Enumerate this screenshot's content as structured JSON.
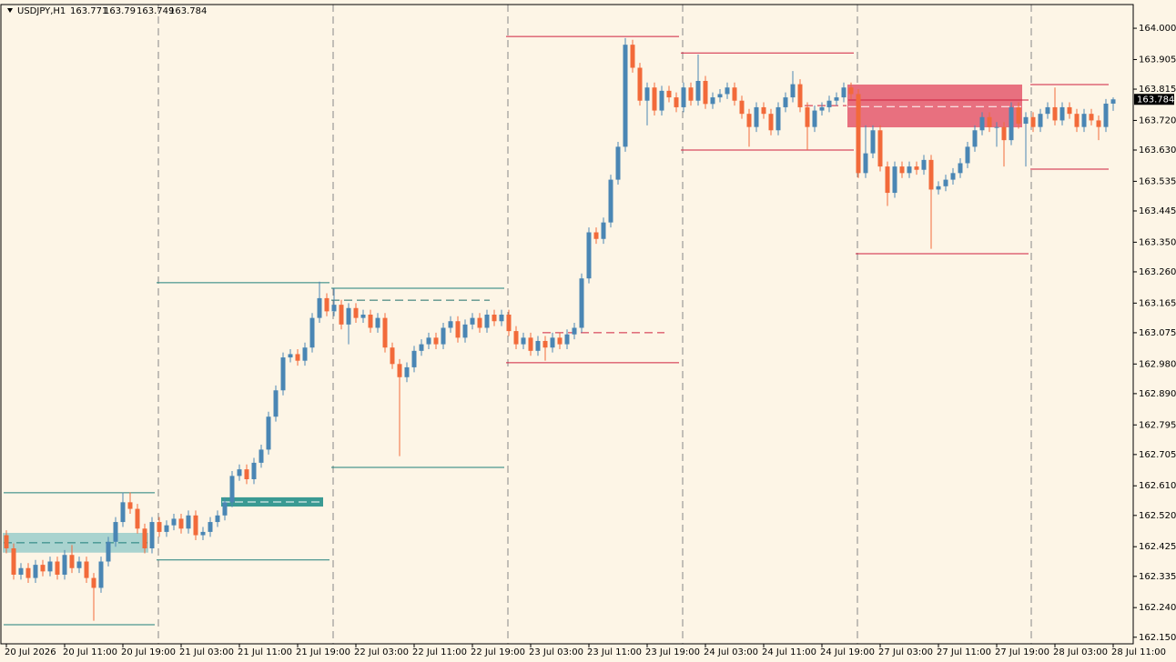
{
  "chart_data": {
    "type": "candlestick",
    "symbol": "USDJPY,H1",
    "up_color": "#4a86b4",
    "down_color": "#f26a3a",
    "ylim": [
      162.13,
      164.072
    ],
    "yticks": [
      {
        "value": 164.0,
        "label": "164.000"
      },
      163.905,
      163.815,
      {
        "value": 163.72,
        "label": "163.720"
      },
      {
        "value": 163.63,
        "label": "163.630"
      },
      163.535,
      163.445,
      {
        "value": 163.35,
        "label": "163.350"
      },
      {
        "value": 163.26,
        "label": "163.260"
      },
      163.165,
      163.075,
      {
        "value": 162.98,
        "label": "162.980"
      },
      {
        "value": 162.89,
        "label": "162.890"
      },
      162.795,
      162.705,
      {
        "value": 162.61,
        "label": "162.610"
      },
      {
        "value": 162.52,
        "label": "162.520"
      },
      162.425,
      162.335,
      {
        "value": 162.24,
        "label": "162.240"
      },
      {
        "value": 162.15,
        "label": "162.150"
      }
    ],
    "categories": [
      "20 Jul 2026",
      null,
      null,
      null,
      null,
      null,
      null,
      null,
      "20 Jul 11:00",
      null,
      null,
      null,
      null,
      null,
      null,
      null,
      "20 Jul 19:00",
      null,
      null,
      null,
      null,
      null,
      null,
      null,
      "21 Jul 03:00",
      null,
      null,
      null,
      null,
      null,
      null,
      null,
      "21 Jul 11:00",
      null,
      null,
      null,
      null,
      null,
      null,
      null,
      "21 Jul 19:00",
      null,
      null,
      null,
      null,
      null,
      null,
      null,
      "22 Jul 03:00",
      null,
      null,
      null,
      null,
      null,
      null,
      null,
      "22 Jul 11:00",
      null,
      null,
      null,
      null,
      null,
      null,
      null,
      "22 Jul 19:00",
      null,
      null,
      null,
      null,
      null,
      null,
      null,
      "23 Jul 03:00",
      null,
      null,
      null,
      null,
      null,
      null,
      null,
      "23 Jul 11:00",
      null,
      null,
      null,
      null,
      null,
      null,
      null,
      "23 Jul 19:00",
      null,
      null,
      null,
      null,
      null,
      null,
      null,
      "24 Jul 03:00",
      null,
      null,
      null,
      null,
      null,
      null,
      null,
      "24 Jul 11:00",
      null,
      null,
      null,
      null,
      null,
      null,
      null,
      "24 Jul 19:00",
      null,
      null,
      null,
      null,
      null,
      null,
      null,
      "27 Jul 03:00",
      null,
      null,
      null,
      null,
      null,
      null,
      null,
      "27 Jul 11:00",
      null,
      null,
      null,
      null,
      null,
      null,
      null,
      "27 Jul 19:00",
      null,
      null,
      null,
      null,
      null,
      null,
      null,
      "28 Jul 03:00",
      null,
      null,
      null,
      null,
      null,
      null,
      null,
      "28 Jul 11:00"
    ],
    "open": [
      162.46,
      162.42,
      162.34,
      162.36,
      162.33,
      162.37,
      162.35,
      162.38,
      162.34,
      162.4,
      162.36,
      162.38,
      162.33,
      162.3,
      162.38,
      162.44,
      162.5,
      162.56,
      162.54,
      162.48,
      162.42,
      162.5,
      162.47,
      162.49,
      162.51,
      162.48,
      162.52,
      162.46,
      162.47,
      162.5,
      162.52,
      162.56,
      162.64,
      162.66,
      162.63,
      162.68,
      162.72,
      162.82,
      162.9,
      163.0,
      163.01,
      162.99,
      163.03,
      163.12,
      163.18,
      163.14,
      163.16,
      163.1,
      163.15,
      163.12,
      163.13,
      163.09,
      163.12,
      163.03,
      162.98,
      162.94,
      162.97,
      163.02,
      163.04,
      163.06,
      163.04,
      163.09,
      163.11,
      163.06,
      163.1,
      163.12,
      163.09,
      163.13,
      163.11,
      163.13,
      163.08,
      163.04,
      163.06,
      163.02,
      163.05,
      163.03,
      163.06,
      163.04,
      163.07,
      163.09,
      163.24,
      163.38,
      163.36,
      163.41,
      163.54,
      163.64,
      163.95,
      163.88,
      163.78,
      163.82,
      163.75,
      163.81,
      163.79,
      163.76,
      163.82,
      163.78,
      163.84,
      163.77,
      163.79,
      163.8,
      163.82,
      163.78,
      163.74,
      163.7,
      163.76,
      163.74,
      163.69,
      163.76,
      163.79,
      163.83,
      163.76,
      163.7,
      163.75,
      163.76,
      163.78,
      163.79,
      163.82,
      163.8,
      163.56,
      163.62,
      163.69,
      163.58,
      163.5,
      163.58,
      163.56,
      163.58,
      163.57,
      163.6,
      163.51,
      163.52,
      163.54,
      163.56,
      163.59,
      163.64,
      163.69,
      163.73,
      163.7,
      163.7,
      163.66,
      163.76,
      163.71,
      163.73,
      163.7,
      163.74,
      163.76,
      163.72,
      163.76,
      163.74,
      163.7,
      163.74,
      163.72,
      163.7,
      163.771
    ],
    "high": [
      162.475,
      162.435,
      162.375,
      162.375,
      162.385,
      162.385,
      162.395,
      162.395,
      162.415,
      162.43,
      162.395,
      162.395,
      162.345,
      162.395,
      162.455,
      162.515,
      162.59,
      162.59,
      162.555,
      162.495,
      162.515,
      162.515,
      162.505,
      162.525,
      162.525,
      162.535,
      162.535,
      162.485,
      162.515,
      162.535,
      162.575,
      162.655,
      162.675,
      162.675,
      162.695,
      162.735,
      162.835,
      162.915,
      163.015,
      163.025,
      163.025,
      163.045,
      163.135,
      163.23,
      163.195,
      163.21,
      163.175,
      163.165,
      163.165,
      163.145,
      163.145,
      163.135,
      163.135,
      163.045,
      162.995,
      162.985,
      163.035,
      163.055,
      163.075,
      163.075,
      163.105,
      163.125,
      163.125,
      163.115,
      163.135,
      163.135,
      163.145,
      163.145,
      163.145,
      163.145,
      163.095,
      163.075,
      163.075,
      163.065,
      163.065,
      163.075,
      163.075,
      163.085,
      163.105,
      163.255,
      163.395,
      163.395,
      163.425,
      163.555,
      163.655,
      163.97,
      163.965,
      163.895,
      163.835,
      163.835,
      163.825,
      163.825,
      163.805,
      163.835,
      163.835,
      163.92,
      163.855,
      163.805,
      163.815,
      163.835,
      163.835,
      163.795,
      163.755,
      163.775,
      163.775,
      163.755,
      163.775,
      163.805,
      163.87,
      163.845,
      163.775,
      163.765,
      163.775,
      163.795,
      163.805,
      163.835,
      163.835,
      163.815,
      163.705,
      163.705,
      163.705,
      163.595,
      163.595,
      163.595,
      163.595,
      163.595,
      163.615,
      163.615,
      163.535,
      163.555,
      163.575,
      163.605,
      163.655,
      163.705,
      163.745,
      163.745,
      163.715,
      163.715,
      163.775,
      163.775,
      163.745,
      163.745,
      163.755,
      163.775,
      163.82,
      163.775,
      163.775,
      163.755,
      163.755,
      163.755,
      163.735,
      163.785,
      163.79
    ],
    "low": [
      162.405,
      162.325,
      162.325,
      162.315,
      162.315,
      162.335,
      162.335,
      162.325,
      162.325,
      162.345,
      162.345,
      162.315,
      162.2,
      162.285,
      162.365,
      162.425,
      162.485,
      162.525,
      162.465,
      162.405,
      162.405,
      162.455,
      162.455,
      162.475,
      162.465,
      162.465,
      162.445,
      162.445,
      162.455,
      162.485,
      162.505,
      162.545,
      162.625,
      162.615,
      162.615,
      162.665,
      162.705,
      162.805,
      162.885,
      162.985,
      162.975,
      162.975,
      163.015,
      163.105,
      163.125,
      163.125,
      163.085,
      163.04,
      163.105,
      163.105,
      163.075,
      163.075,
      163.015,
      162.965,
      162.7,
      162.925,
      162.955,
      163.005,
      163.025,
      163.025,
      163.025,
      163.075,
      163.045,
      163.045,
      163.085,
      163.075,
      163.075,
      163.095,
      163.095,
      163.065,
      163.025,
      163.025,
      163.005,
      163.005,
      162.99,
      163.015,
      163.025,
      163.025,
      163.055,
      163.075,
      163.225,
      163.345,
      163.345,
      163.395,
      163.525,
      163.625,
      163.865,
      163.765,
      163.705,
      163.735,
      163.735,
      163.775,
      163.745,
      163.745,
      163.765,
      163.765,
      163.755,
      163.755,
      163.775,
      163.785,
      163.765,
      163.725,
      163.64,
      163.685,
      163.725,
      163.675,
      163.675,
      163.745,
      163.775,
      163.745,
      163.63,
      163.685,
      163.735,
      163.745,
      163.765,
      163.775,
      163.785,
      163.545,
      163.545,
      163.605,
      163.565,
      163.46,
      163.485,
      163.545,
      163.545,
      163.555,
      163.555,
      163.33,
      163.495,
      163.505,
      163.525,
      163.545,
      163.575,
      163.625,
      163.675,
      163.685,
      163.64,
      163.58,
      163.645,
      163.695,
      163.58,
      163.685,
      163.685,
      163.725,
      163.705,
      163.705,
      163.725,
      163.685,
      163.685,
      163.705,
      163.66,
      163.685,
      163.749
    ],
    "close": [
      162.42,
      162.34,
      162.36,
      162.33,
      162.37,
      162.35,
      162.38,
      162.34,
      162.4,
      162.36,
      162.38,
      162.33,
      162.3,
      162.38,
      162.44,
      162.5,
      162.56,
      162.54,
      162.48,
      162.42,
      162.5,
      162.47,
      162.49,
      162.51,
      162.48,
      162.52,
      162.46,
      162.47,
      162.5,
      162.52,
      162.56,
      162.64,
      162.66,
      162.63,
      162.68,
      162.72,
      162.82,
      162.9,
      163.0,
      163.01,
      162.99,
      163.03,
      163.12,
      163.18,
      163.14,
      163.16,
      163.1,
      163.15,
      163.12,
      163.13,
      163.09,
      163.12,
      163.03,
      162.98,
      162.94,
      162.97,
      163.02,
      163.04,
      163.06,
      163.04,
      163.09,
      163.11,
      163.06,
      163.1,
      163.12,
      163.09,
      163.13,
      163.11,
      163.13,
      163.08,
      163.04,
      163.06,
      163.02,
      163.05,
      163.03,
      163.06,
      163.04,
      163.07,
      163.09,
      163.24,
      163.38,
      163.36,
      163.41,
      163.54,
      163.64,
      163.95,
      163.88,
      163.78,
      163.82,
      163.75,
      163.81,
      163.79,
      163.76,
      163.82,
      163.78,
      163.84,
      163.77,
      163.79,
      163.8,
      163.82,
      163.78,
      163.74,
      163.7,
      163.76,
      163.74,
      163.69,
      163.76,
      163.79,
      163.83,
      163.76,
      163.7,
      163.75,
      163.76,
      163.78,
      163.79,
      163.82,
      163.8,
      163.56,
      163.62,
      163.69,
      163.58,
      163.5,
      163.58,
      163.56,
      163.58,
      163.57,
      163.6,
      163.51,
      163.52,
      163.54,
      163.56,
      163.59,
      163.64,
      163.69,
      163.73,
      163.7,
      163.7,
      163.66,
      163.76,
      163.71,
      163.73,
      163.7,
      163.74,
      163.76,
      163.72,
      163.76,
      163.74,
      163.7,
      163.74,
      163.72,
      163.7,
      163.771,
      163.784
    ],
    "zones": [
      {
        "high": 162.467,
        "low": 162.407,
        "start": 0,
        "end": 19,
        "color": "#a9d3cf"
      },
      {
        "high": 162.575,
        "low": 162.547,
        "start": 30,
        "end": 43,
        "color": "#3a9a93"
      },
      {
        "high": 163.829,
        "low": 163.699,
        "start": 116,
        "end": 139,
        "color": "#e8707f"
      }
    ],
    "levels": [
      {
        "price": 162.589,
        "start": 0,
        "end": 20,
        "color": "#1f7f7a",
        "dashed": false
      },
      {
        "price": 162.188,
        "start": 0,
        "end": 20,
        "color": "#1f7f7a",
        "dashed": false
      },
      {
        "price": 162.437,
        "start": 0,
        "end": 19,
        "color": "#1f7f7a",
        "dashed": true
      },
      {
        "price": 163.227,
        "start": 21,
        "end": 44,
        "color": "#1f7f7a",
        "dashed": false
      },
      {
        "price": 162.385,
        "start": 21,
        "end": 44,
        "color": "#1f7f7a",
        "dashed": false
      },
      {
        "price": 162.561,
        "start": 30,
        "end": 43,
        "color": "#ffffff",
        "dashed": true
      },
      {
        "price": 163.21,
        "start": 45,
        "end": 68,
        "color": "#1f7f7a",
        "dashed": false
      },
      {
        "price": 162.666,
        "start": 45,
        "end": 68,
        "color": "#1f7f7a",
        "dashed": false
      },
      {
        "price": 163.174,
        "start": 45,
        "end": 66,
        "color": "#1f6f6a",
        "dashed": true
      },
      {
        "price": 163.975,
        "start": 69,
        "end": 92,
        "color": "#d0203f",
        "dashed": false
      },
      {
        "price": 162.984,
        "start": 69,
        "end": 92,
        "color": "#d0203f",
        "dashed": false
      },
      {
        "price": 163.075,
        "start": 74,
        "end": 90,
        "color": "#d0203f",
        "dashed": true
      },
      {
        "price": 163.925,
        "start": 93,
        "end": 116,
        "color": "#d0203f",
        "dashed": false
      },
      {
        "price": 163.63,
        "start": 93,
        "end": 116,
        "color": "#d0203f",
        "dashed": false
      },
      {
        "price": 163.765,
        "start": 110,
        "end": 115,
        "color": "#d0203f",
        "dashed": true
      },
      {
        "price": 163.315,
        "start": 117,
        "end": 140,
        "color": "#d0203f",
        "dashed": false
      },
      {
        "price": 163.782,
        "start": 116,
        "end": 140,
        "color": "#d0203f",
        "dashed": false
      },
      {
        "price": 163.762,
        "start": 116,
        "end": 139,
        "color": "#ffffff",
        "dashed": true
      },
      {
        "price": 163.829,
        "start": 141,
        "end": 151,
        "color": "#d0203f",
        "dashed": false
      },
      {
        "price": 163.572,
        "start": 141,
        "end": 151,
        "color": "#d0203f",
        "dashed": false
      }
    ]
  }
}
